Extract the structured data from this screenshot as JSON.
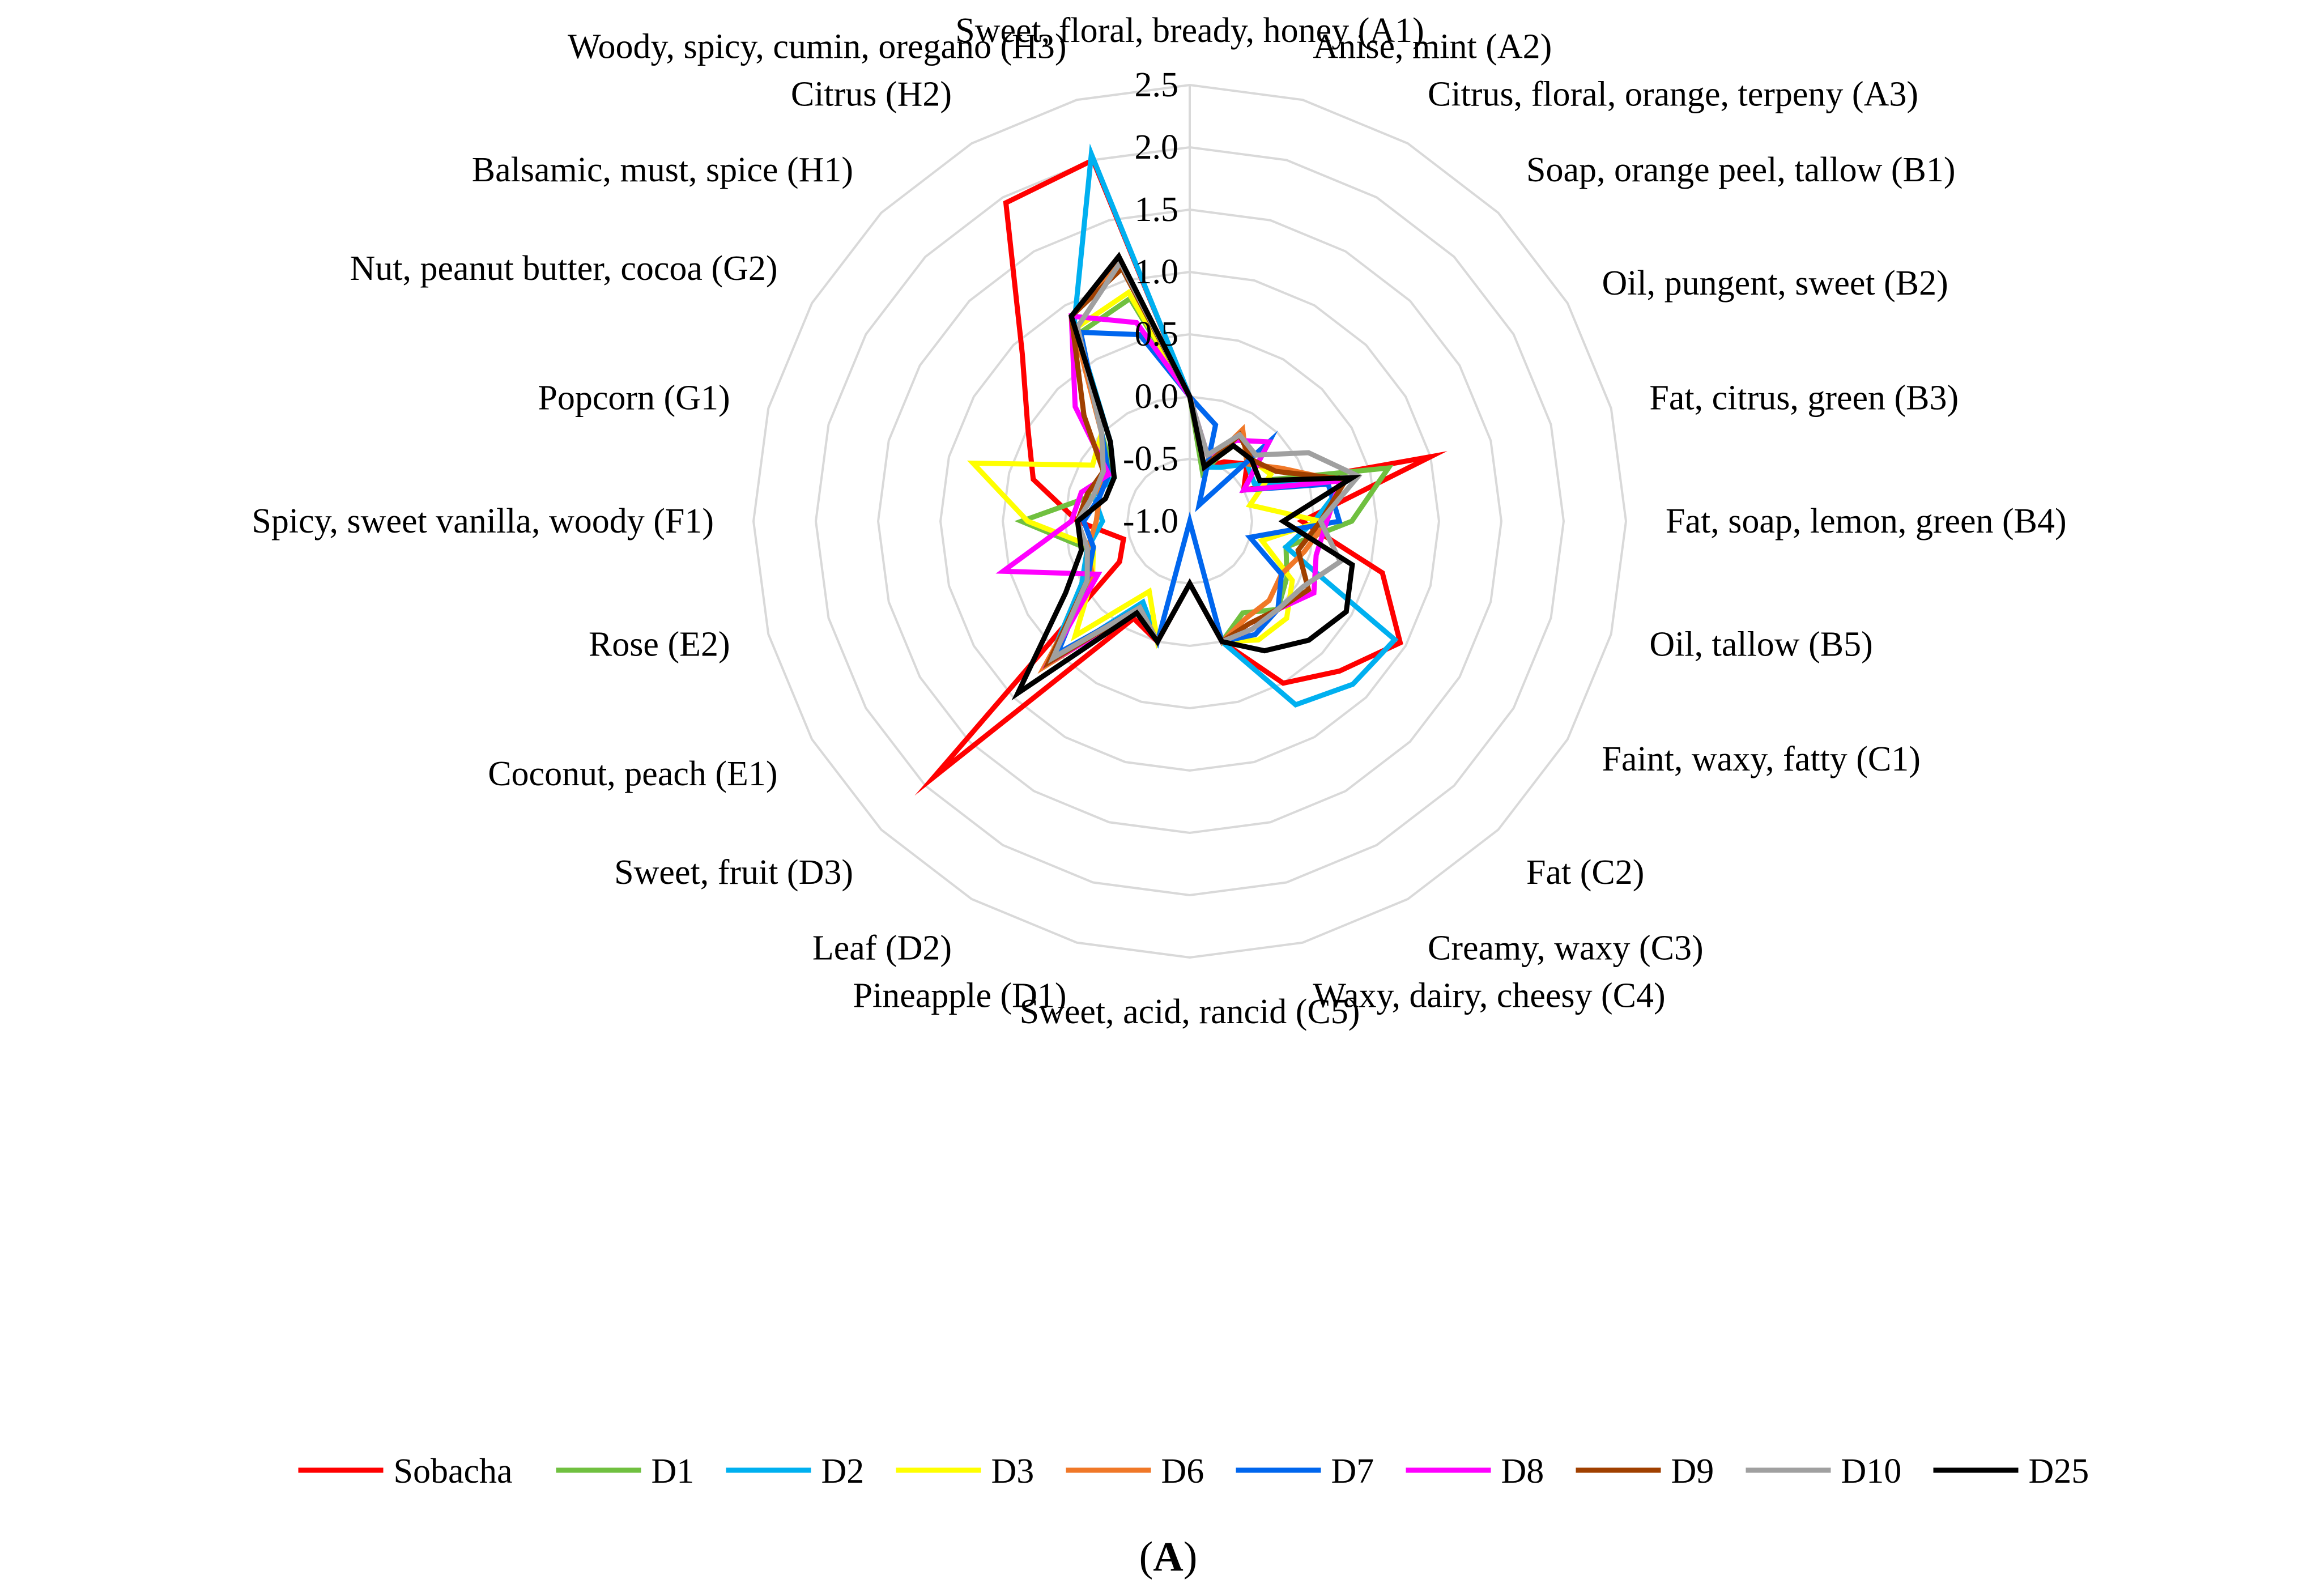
{
  "chart_data": {
    "type": "radar",
    "title": "",
    "panel_label": {
      "open": "(",
      "letter": "A",
      "close": ")"
    },
    "rlim": [
      -1.0,
      2.5
    ],
    "ticks": [
      "-1.0",
      "-0.5",
      "0.0",
      "0.5",
      "1.0",
      "1.5",
      "2.0",
      "2.5"
    ],
    "tick_values": [
      -1.0,
      -0.5,
      0.0,
      0.5,
      1.0,
      1.5,
      2.0,
      2.5
    ],
    "categories": [
      "Sweet, floral, bready, honey (A1)",
      "Anise, mint (A2)",
      "Citrus, floral, orange, terpeny (A3)",
      "Soap, orange peel, tallow (B1)",
      "Oil, pungent, sweet (B2)",
      "Fat, citrus, green (B3)",
      "Fat, soap, lemon, green (B4)",
      "Oil, tallow (B5)",
      "Faint, waxy, fatty (C1)",
      "Fat (C2)",
      "Creamy, waxy (C3)",
      "Waxy, dairy, cheesy (C4)",
      "Sweet, acid, rancid (C5)",
      "Pineapple (D1)",
      "Leaf (D2)",
      "Sweet, fruit (D3)",
      "Coconut, peach (E1)",
      "Rose (E2)",
      "Spicy, sweet vanilla, woody (F1)",
      "Popcorn (G1)",
      "Nut, peanut butter, cocoa (G2)",
      "Balsamic, must, spice (H1)",
      "Citrus (H2)",
      "Woody, spicy, cumin, oregano (H3)"
    ],
    "series": [
      {
        "name": "Sobacha",
        "color": "#ff0000",
        "values": [
          0.0,
          -0.55,
          -0.45,
          -0.35,
          -0.5,
          1.0,
          -0.1,
          0.6,
          0.95,
          0.7,
          0.5,
          0.0,
          -0.5,
          0.0,
          -0.1,
          1.9,
          -0.35,
          -0.45,
          -0.1,
          0.3,
          0.5,
          0.9,
          1.95,
          2.0
        ]
      },
      {
        "name": "D1",
        "color": "#70c040",
        "values": [
          0.0,
          -0.6,
          -0.2,
          -0.3,
          -0.35,
          0.65,
          0.3,
          -0.2,
          -0.1,
          0.0,
          -0.15,
          0.0,
          -0.5,
          0.0,
          -0.2,
          0.6,
          0.0,
          -0.15,
          0.35,
          -0.2,
          -0.3,
          0.0,
          0.75,
          0.85
        ]
      },
      {
        "name": "D2",
        "color": "#00b0f0",
        "values": [
          0.0,
          -0.55,
          -0.5,
          -0.35,
          -0.4,
          0.3,
          0.0,
          -0.2,
          0.9,
          0.85,
          0.7,
          0.0,
          -0.5,
          0.0,
          -0.25,
          0.6,
          0.0,
          -0.15,
          -0.3,
          -0.2,
          -0.3,
          -0.1,
          0.85,
          2.05
        ]
      },
      {
        "name": "D3",
        "color": "#ffff00",
        "values": [
          0.0,
          -0.55,
          -0.3,
          -0.3,
          -0.25,
          -0.5,
          0.05,
          -0.4,
          -0.05,
          0.1,
          0.1,
          0.0,
          -0.5,
          0.0,
          -0.35,
          0.3,
          -0.1,
          -0.2,
          0.3,
          0.8,
          -0.1,
          0.0,
          0.8,
          0.9
        ]
      },
      {
        "name": "D6",
        "color": "#f07828",
        "values": [
          0.0,
          -0.55,
          -0.15,
          -0.35,
          -0.15,
          0.25,
          0.1,
          -0.05,
          -0.15,
          -0.1,
          -0.1,
          0.0,
          -0.5,
          0.0,
          -0.2,
          0.65,
          -0.1,
          -0.15,
          -0.25,
          -0.25,
          -0.2,
          0.0,
          0.9,
          1.15
        ]
      },
      {
        "name": "D7",
        "color": "#0066ee",
        "values": [
          0.0,
          -0.2,
          -0.85,
          -0.1,
          -0.5,
          0.15,
          0.2,
          -0.5,
          -0.15,
          0.0,
          0.05,
          0.0,
          -1.0,
          0.0,
          -0.2,
          0.5,
          -0.05,
          -0.2,
          -0.15,
          -0.25,
          -0.25,
          0.0,
          0.75,
          0.55
        ]
      },
      {
        "name": "D8",
        "color": "#ff00ff",
        "values": [
          0.0,
          -0.45,
          -0.25,
          -0.1,
          -0.5,
          0.25,
          0.1,
          0.05,
          0.15,
          0.0,
          0.0,
          0.0,
          -0.5,
          0.0,
          -0.15,
          0.6,
          -0.15,
          0.55,
          -0.05,
          -0.1,
          -0.25,
          0.3,
          0.9,
          0.65
        ]
      },
      {
        "name": "D9",
        "color": "#a04000",
        "values": [
          0.0,
          -0.55,
          -0.2,
          -0.3,
          -0.2,
          0.3,
          0.05,
          -0.1,
          0.1,
          0.0,
          -0.05,
          0.0,
          -0.5,
          0.0,
          -0.2,
          0.6,
          -0.05,
          -0.15,
          -0.1,
          -0.15,
          -0.2,
          0.2,
          0.9,
          1.1
        ]
      },
      {
        "name": "D10",
        "color": "#a0a0a0",
        "values": [
          0.0,
          -0.45,
          -0.2,
          -0.25,
          0.1,
          0.4,
          0.05,
          0.25,
          0.05,
          0.0,
          0.0,
          0.0,
          -0.5,
          0.0,
          -0.2,
          0.55,
          -0.05,
          -0.15,
          -0.1,
          -0.2,
          -0.2,
          0.0,
          0.8,
          1.15
        ]
      },
      {
        "name": "D25",
        "color": "#000000",
        "values": [
          0.0,
          -0.55,
          -0.3,
          -0.3,
          -0.35,
          0.35,
          -0.25,
          0.35,
          0.45,
          0.35,
          0.2,
          0.0,
          -0.5,
          0.0,
          -0.15,
          0.95,
          0.15,
          -0.1,
          -0.1,
          -0.3,
          -0.3,
          -0.1,
          0.9,
          1.2
        ]
      }
    ]
  }
}
